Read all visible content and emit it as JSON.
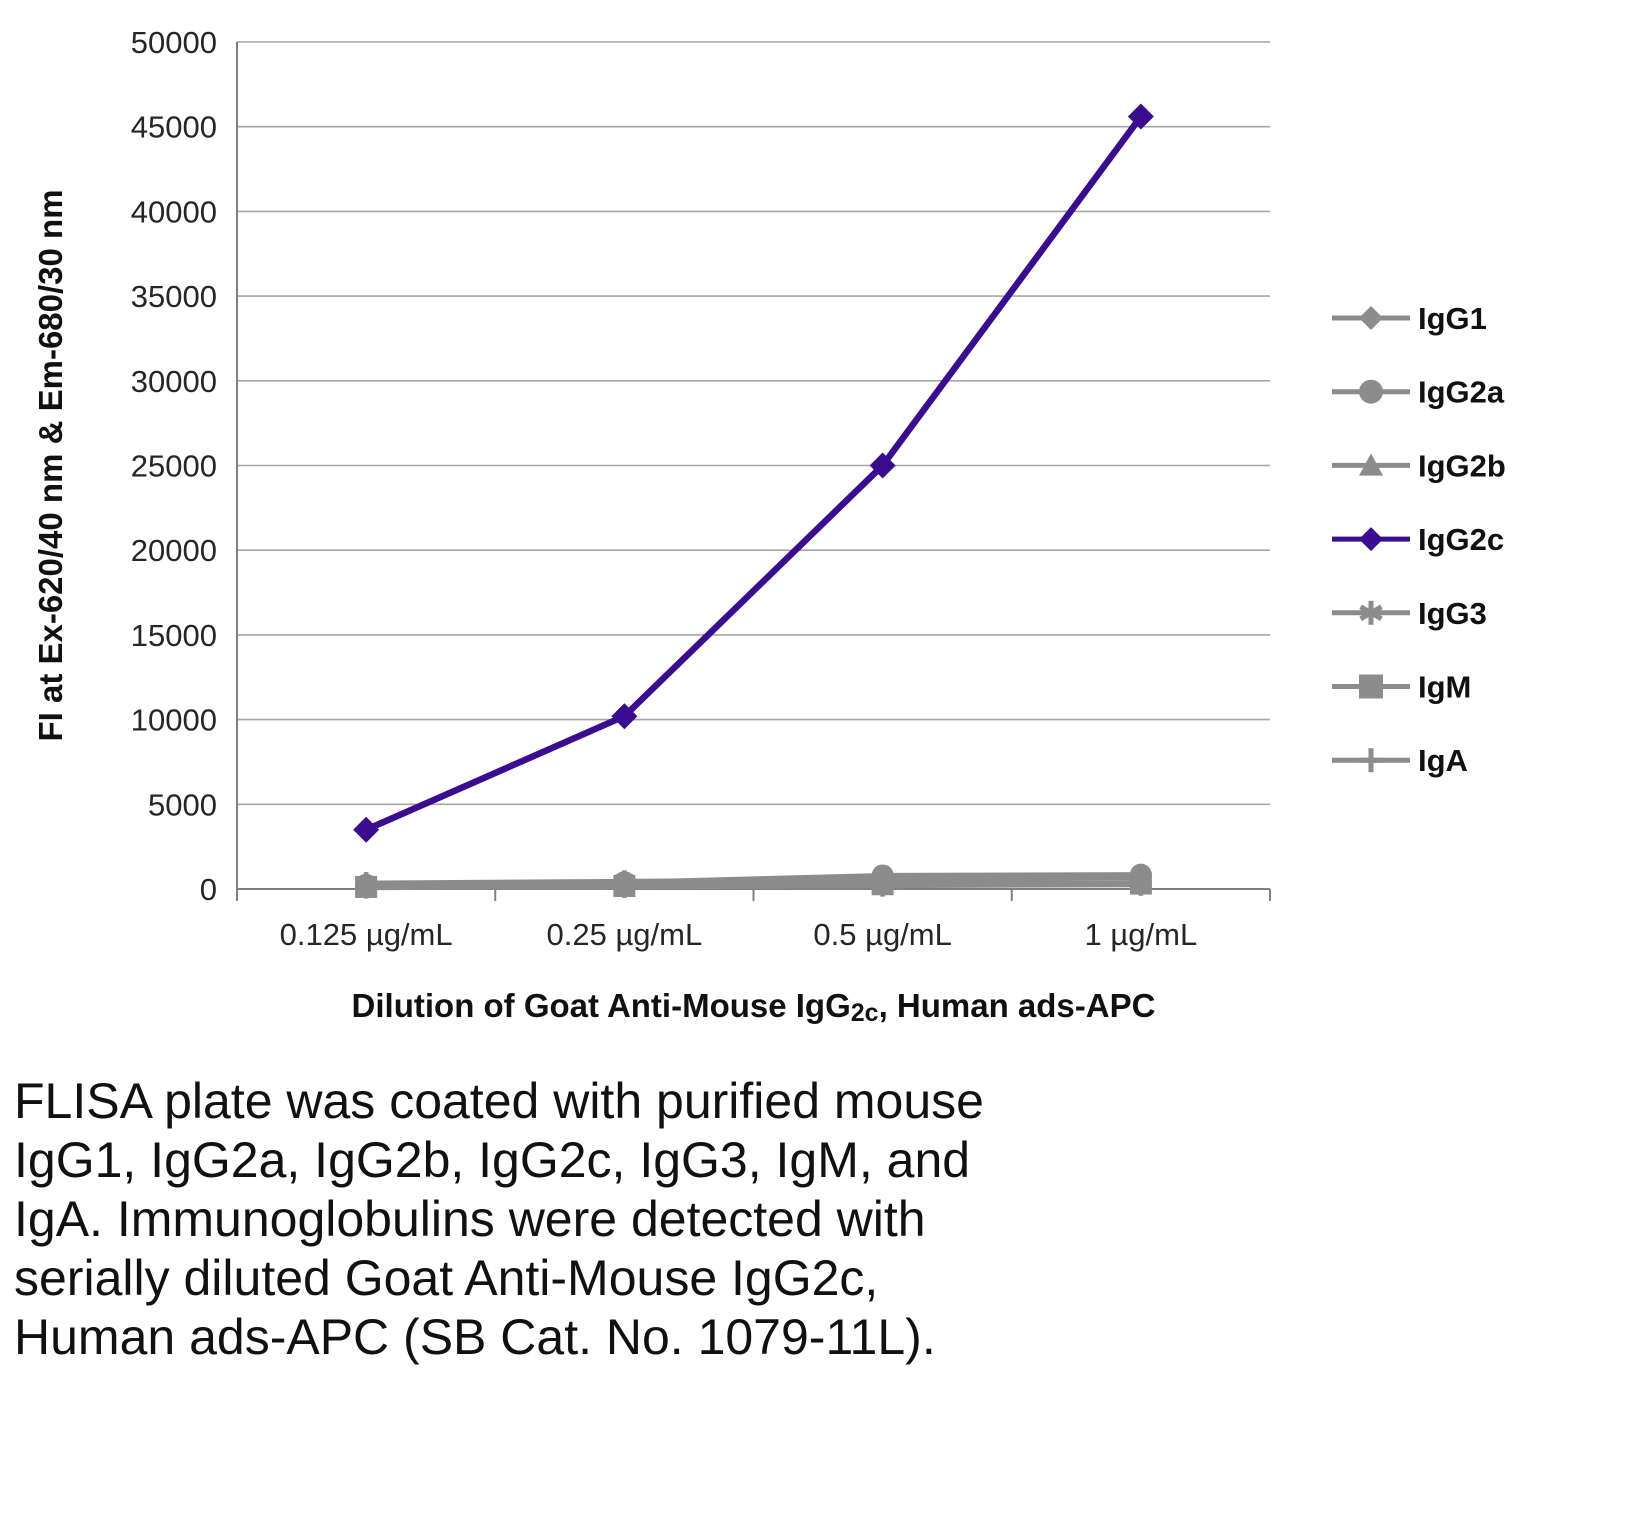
{
  "chart_data": {
    "type": "line",
    "title": "",
    "xlabel_parts": [
      {
        "text": "Dilution of Goat Anti-Mouse IgG",
        "sub": false
      },
      {
        "text": "2c",
        "sub": true
      },
      {
        "text": ", Human ads-APC",
        "sub": false
      }
    ],
    "xlabel": "Dilution of Goat Anti-Mouse IgG2c, Human ads-APC",
    "ylabel": "FI at Ex-620/40 nm & Em-680/30 nm",
    "categories": [
      "0.125 µg/mL",
      "0.25 µg/mL",
      "0.5 µg/mL",
      "1 µg/mL"
    ],
    "ylim": [
      0,
      50000
    ],
    "ytick_step": 5000,
    "grid": true,
    "legend_position": "right",
    "colors": {
      "accent": "#3a0d8e",
      "muted": "#8c8c8c",
      "gridline": "#a6a6a6",
      "axis": "#808080"
    },
    "series": [
      {
        "name": "IgG1",
        "marker": "diamond",
        "color": "#8c8c8c",
        "emphasis": false,
        "values": [
          150,
          200,
          300,
          350
        ]
      },
      {
        "name": "IgG2a",
        "marker": "circle",
        "color": "#8c8c8c",
        "emphasis": false,
        "values": [
          250,
          400,
          800,
          850
        ]
      },
      {
        "name": "IgG2b",
        "marker": "triangle",
        "color": "#8c8c8c",
        "emphasis": false,
        "values": [
          100,
          150,
          250,
          300
        ]
      },
      {
        "name": "IgG2c",
        "marker": "diamond",
        "color": "#3a0d8e",
        "emphasis": true,
        "values": [
          3500,
          10200,
          25000,
          45600
        ]
      },
      {
        "name": "IgG3",
        "marker": "asterisk",
        "color": "#8c8c8c",
        "emphasis": false,
        "values": [
          350,
          450,
          550,
          650
        ]
      },
      {
        "name": "IgM",
        "marker": "square",
        "color": "#8c8c8c",
        "emphasis": false,
        "values": [
          120,
          180,
          280,
          320
        ]
      },
      {
        "name": "IgA",
        "marker": "plus",
        "color": "#8c8c8c",
        "emphasis": false,
        "values": [
          80,
          120,
          200,
          250
        ]
      }
    ]
  },
  "caption": "FLISA plate was coated with purified mouse\nIgG1, IgG2a, IgG2b, IgG2c, IgG3, IgM, and\nIgA.  Immunoglobulins were detected with\nserially diluted Goat Anti-Mouse IgG2c,\nHuman ads-APC (SB Cat. No. 1079-11L)."
}
